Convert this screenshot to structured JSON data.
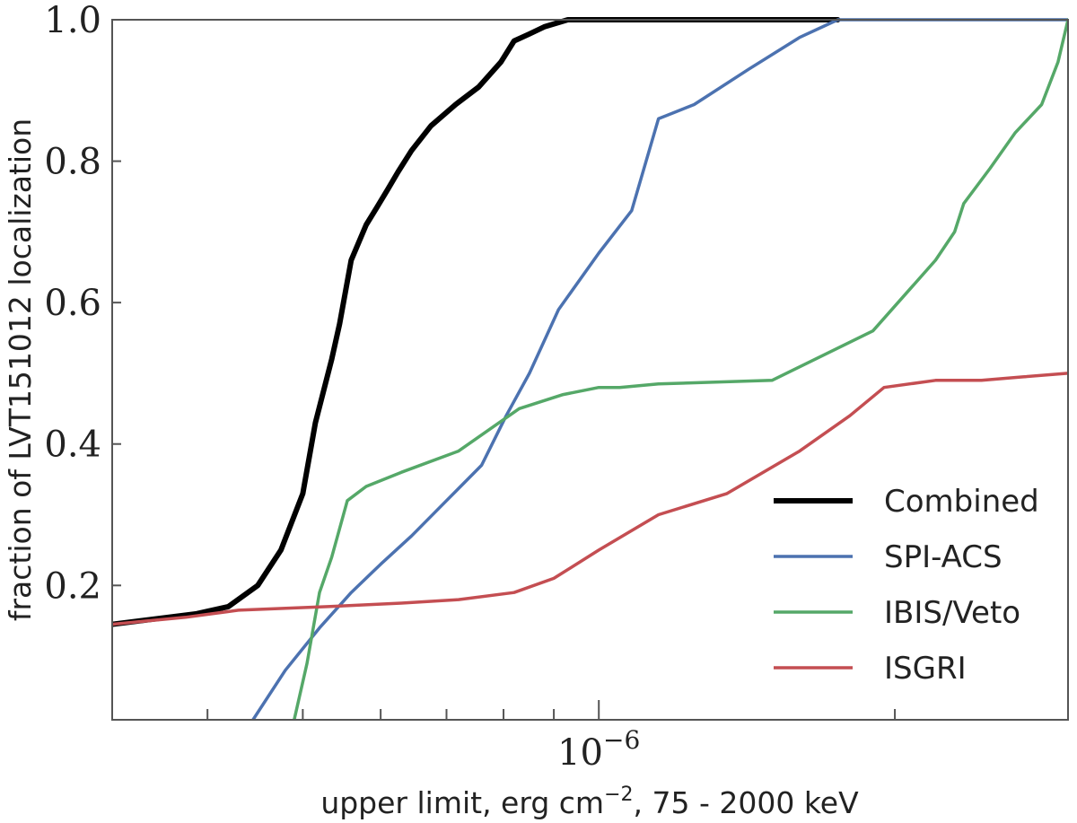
{
  "chart_data": {
    "type": "line",
    "xscale": "log",
    "xlim": [
      3.2e-07,
      3e-06
    ],
    "ylim": [
      0.01,
      1.0
    ],
    "xlabel": "upper limit, erg cm",
    "xlabel_sup": "−2",
    "xlabel_suffix": ", 75 - 2000 keV",
    "ylabel": "fraction of LVT151012 localization",
    "grid": false,
    "legend_position": "lower-right",
    "x_ticks": [
      {
        "value": 1e-06,
        "base": "10",
        "exp": "−6"
      }
    ],
    "y_ticks": [
      {
        "value": 0.2,
        "label": "0.2"
      },
      {
        "value": 0.4,
        "label": "0.4"
      },
      {
        "value": 0.6,
        "label": "0.6"
      },
      {
        "value": 0.8,
        "label": "0.8"
      },
      {
        "value": 1.0,
        "label": "1.0"
      }
    ],
    "x_minor_ticks": [
      4e-07,
      5e-07,
      6e-07,
      7e-07,
      8e-07,
      9e-07,
      2e-06,
      3e-06
    ],
    "series": [
      {
        "name": "Combined",
        "color": "#000000",
        "width": 6,
        "x": [
          3.2e-07,
          3.9e-07,
          4.2e-07,
          4.5e-07,
          4.75e-07,
          5e-07,
          5.15e-07,
          5.35e-07,
          5.45e-07,
          5.6e-07,
          5.8e-07,
          5.95e-07,
          6.1e-07,
          6.25e-07,
          6.45e-07,
          6.75e-07,
          7.15e-07,
          7.55e-07,
          7.95e-07,
          8.2e-07,
          8.5e-07,
          8.8e-07,
          9.3e-07,
          1e-06,
          1.09e-06,
          1.2e-06,
          1.5e-06,
          1.75e-06
        ],
        "y": [
          0.145,
          0.16,
          0.17,
          0.2,
          0.25,
          0.33,
          0.43,
          0.52,
          0.57,
          0.66,
          0.71,
          0.735,
          0.76,
          0.785,
          0.815,
          0.85,
          0.88,
          0.905,
          0.94,
          0.97,
          0.98,
          0.99,
          1.0,
          1.0,
          1.0,
          1.0,
          1.0,
          1.0
        ]
      },
      {
        "name": "SPI-ACS",
        "color": "#4c72b0",
        "width": 3.5,
        "x": [
          4.45e-07,
          4.8e-07,
          5.2e-07,
          5.6e-07,
          6e-07,
          6.45e-07,
          7e-07,
          7.6e-07,
          8.05e-07,
          8.5e-07,
          9.1e-07,
          1e-06,
          1.08e-06,
          1.15e-06,
          1.25e-06,
          1.42e-06,
          1.6e-06,
          1.75e-06,
          2e-06,
          3e-06
        ],
        "y": [
          0.01,
          0.08,
          0.14,
          0.19,
          0.23,
          0.27,
          0.32,
          0.37,
          0.44,
          0.5,
          0.59,
          0.67,
          0.73,
          0.86,
          0.88,
          0.93,
          0.975,
          1.0,
          1.0,
          1.0
        ],
        "extra_y": null
      },
      {
        "name": "IBIS/Veto",
        "color": "#55a868",
        "width": 3.5,
        "x": [
          4.9e-07,
          5.05e-07,
          5.2e-07,
          5.35e-07,
          5.55e-07,
          5.8e-07,
          6.3e-07,
          7.2e-07,
          8.3e-07,
          9.2e-07,
          1e-06,
          1.05e-06,
          1.15e-06,
          1.5e-06,
          1.9e-06,
          2.2e-06,
          2.3e-06,
          2.35e-06,
          2.5e-06,
          2.65e-06,
          2.82e-06,
          2.93e-06,
          3e-06
        ],
        "y": [
          0.01,
          0.09,
          0.19,
          0.24,
          0.32,
          0.34,
          0.36,
          0.39,
          0.45,
          0.47,
          0.48,
          0.48,
          0.485,
          0.49,
          0.56,
          0.66,
          0.7,
          0.74,
          0.79,
          0.84,
          0.88,
          0.94,
          1.0
        ]
      },
      {
        "name": "ISGRI",
        "color": "#c44e52",
        "width": 3.5,
        "x": [
          3.2e-07,
          3.8e-07,
          4.3e-07,
          5.3e-07,
          6.3e-07,
          7.2e-07,
          8.2e-07,
          9e-07,
          1e-06,
          1.15e-06,
          1.35e-06,
          1.6e-06,
          1.8e-06,
          1.95e-06,
          2.2e-06,
          2.45e-06,
          2.7e-06,
          3e-06
        ],
        "y": [
          0.145,
          0.155,
          0.165,
          0.17,
          0.175,
          0.18,
          0.19,
          0.21,
          0.25,
          0.3,
          0.33,
          0.39,
          0.44,
          0.48,
          0.49,
          0.49,
          0.495,
          0.5
        ]
      }
    ]
  }
}
